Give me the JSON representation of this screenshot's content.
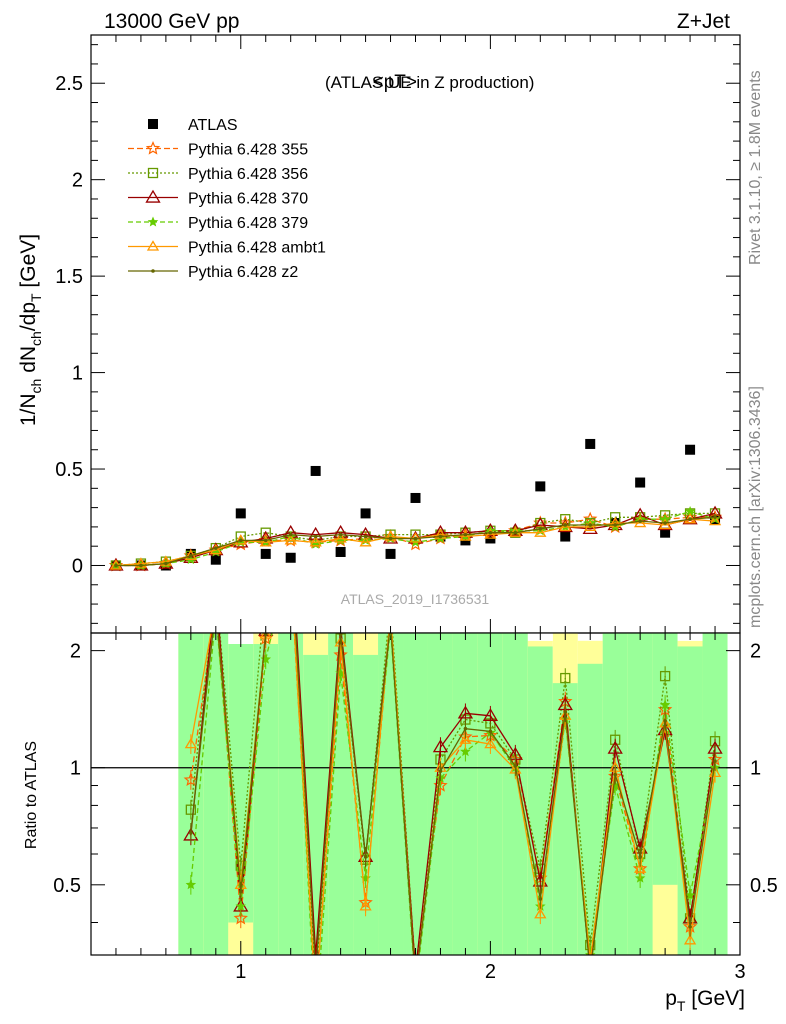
{
  "header": {
    "left": "13000 GeV pp",
    "right": "Z+Jet"
  },
  "side_labels": {
    "rivet": "Rivet 3.1.10, ≥ 1.8M events",
    "mcplots": "mcplots.cern.ch [arXiv:1306.3436]"
  },
  "colors": {
    "atlas": "#000000",
    "p355": "#ff6600",
    "p356": "#669900",
    "p370": "#990000",
    "p379": "#66cc00",
    "ambt1": "#ff9900",
    "z2": "#666600",
    "band_inner": "#99ff99",
    "band_outer": "#ffff99"
  },
  "chart_data": [
    {
      "type": "scatter",
      "title": "<pT>",
      "subtitle": "(ATLAS UE in Z production)",
      "watermark": "ATLAS_2019_I1736531",
      "xlabel": "p",
      "xlabel_sub": "T",
      "xlabel_unit": "[GeV]",
      "ylabel": "1/N",
      "xlim": [
        0.4,
        3.0
      ],
      "ylim": [
        -0.35,
        2.75
      ],
      "yticks": [
        "0",
        "0.5",
        "1",
        "1.5",
        "2",
        "2.5"
      ],
      "xticks": [
        "1",
        "2",
        "3"
      ],
      "x": [
        0.5,
        0.6,
        0.7,
        0.8,
        0.9,
        1.0,
        1.1,
        1.2,
        1.3,
        1.4,
        1.5,
        1.6,
        1.7,
        1.8,
        1.9,
        2.0,
        2.1,
        2.2,
        2.3,
        2.4,
        2.5,
        2.6,
        2.7,
        2.8,
        2.9
      ],
      "series": [
        {
          "name": "ATLAS",
          "key": "atlas",
          "values": [
            0.0,
            0.0,
            0.0,
            0.06,
            0.03,
            0.27,
            0.06,
            0.04,
            0.49,
            0.07,
            0.27,
            0.06,
            0.35,
            0.15,
            0.13,
            0.14,
            0.17,
            0.41,
            0.15,
            0.63,
            0.22,
            0.43,
            0.17,
            0.6,
            0.24
          ]
        },
        {
          "name": "Pythia 6.428 355",
          "key": "p355",
          "values": [
            0.0,
            0.0,
            0.01,
            0.05,
            0.08,
            0.11,
            0.13,
            0.13,
            0.12,
            0.13,
            0.14,
            0.15,
            0.11,
            0.14,
            0.16,
            0.17,
            0.18,
            0.22,
            0.22,
            0.24,
            0.2,
            0.24,
            0.24,
            0.25,
            0.25
          ]
        },
        {
          "name": "Pythia 6.428 356",
          "key": "p356",
          "values": [
            0.0,
            0.01,
            0.02,
            0.05,
            0.09,
            0.15,
            0.17,
            0.15,
            0.13,
            0.15,
            0.15,
            0.16,
            0.16,
            0.16,
            0.17,
            0.18,
            0.17,
            0.22,
            0.24,
            0.22,
            0.25,
            0.25,
            0.26,
            0.27,
            0.27
          ]
        },
        {
          "name": "Pythia 6.428 370",
          "key": "p370",
          "values": [
            0.0,
            0.0,
            0.01,
            0.04,
            0.08,
            0.12,
            0.14,
            0.17,
            0.16,
            0.17,
            0.16,
            0.14,
            0.14,
            0.17,
            0.17,
            0.18,
            0.18,
            0.21,
            0.2,
            0.19,
            0.21,
            0.26,
            0.21,
            0.24,
            0.27
          ]
        },
        {
          "name": "Pythia 6.428 379",
          "key": "p379",
          "values": [
            0.0,
            0.0,
            0.01,
            0.03,
            0.07,
            0.12,
            0.12,
            0.15,
            0.11,
            0.13,
            0.13,
            0.14,
            0.12,
            0.14,
            0.15,
            0.18,
            0.18,
            0.18,
            0.2,
            0.22,
            0.2,
            0.24,
            0.24,
            0.28,
            0.24
          ]
        },
        {
          "name": "Pythia 6.428 ambt1",
          "key": "ambt1",
          "values": [
            0.0,
            0.01,
            0.02,
            0.05,
            0.08,
            0.13,
            0.12,
            0.13,
            0.12,
            0.14,
            0.12,
            0.15,
            0.14,
            0.16,
            0.15,
            0.16,
            0.17,
            0.17,
            0.2,
            0.2,
            0.22,
            0.22,
            0.21,
            0.24,
            0.23
          ]
        },
        {
          "name": "Pythia 6.428 z2",
          "key": "z2",
          "values": [
            0.0,
            0.0,
            0.01,
            0.05,
            0.09,
            0.13,
            0.13,
            0.16,
            0.15,
            0.16,
            0.15,
            0.14,
            0.14,
            0.15,
            0.16,
            0.17,
            0.17,
            0.19,
            0.21,
            0.21,
            0.21,
            0.23,
            0.22,
            0.24,
            0.25
          ]
        }
      ]
    },
    {
      "type": "line",
      "ylabel": "Ratio to ATLAS",
      "xlim": [
        0.4,
        3.0
      ],
      "ylim": [
        0.33,
        2.22
      ],
      "yticks": [
        "0.5",
        "1",
        "2"
      ],
      "ytick_values": [
        0.5,
        1,
        2
      ],
      "reference": 1,
      "band": {
        "x_edges": [
          0.75,
          0.85,
          0.95,
          1.05,
          1.15,
          1.25,
          1.35,
          1.45,
          1.55,
          1.65,
          1.75,
          1.85,
          1.95,
          2.05,
          2.15,
          2.25,
          2.35,
          2.45,
          2.55,
          2.65,
          2.75,
          2.85,
          2.95
        ],
        "inner_hi": [
          2.22,
          2.22,
          2.22,
          2.08,
          2.22,
          1.95,
          2.22,
          1.95,
          2.22,
          2.22,
          2.22,
          2.22,
          2.22,
          2.22,
          2.05,
          1.65,
          1.85,
          2.22,
          2.22,
          2.22,
          2.05,
          2.22
        ],
        "outer_hi": [
          2.22,
          2.22,
          2.22,
          2.22,
          2.22,
          2.22,
          2.22,
          2.22,
          2.22,
          2.22,
          2.22,
          2.22,
          2.22,
          2.22,
          2.12,
          2.22,
          2.12,
          2.22,
          2.22,
          2.22,
          2.12,
          2.22
        ],
        "inner_lo": [
          0.33,
          0.33,
          0.33,
          0.33,
          0.33,
          0.33,
          0.33,
          0.33,
          0.33,
          0.33,
          0.33,
          0.33,
          0.33,
          0.33,
          0.33,
          0.33,
          0.33,
          0.33,
          0.33,
          0.33,
          0.33,
          0.33
        ],
        "outer_lo_hole": [
          null,
          null,
          [
            0.33,
            0.4
          ],
          null,
          null,
          null,
          null,
          null,
          null,
          null,
          null,
          null,
          null,
          null,
          null,
          null,
          null,
          null,
          null,
          [
            0.33,
            0.5
          ],
          null,
          null
        ]
      },
      "x": [
        0.8,
        0.9,
        1.0,
        1.1,
        1.2,
        1.3,
        1.4,
        1.5,
        1.6,
        1.7,
        1.8,
        1.9,
        2.0,
        2.1,
        2.2,
        2.3,
        2.4,
        2.5,
        2.6,
        2.7,
        2.8,
        2.9
      ],
      "series": [
        {
          "key": "p355",
          "values": [
            0.93,
            2.6,
            0.41,
            2.15,
            3.2,
            0.25,
            1.95,
            0.45,
            2.4,
            0.3,
            0.9,
            1.2,
            1.21,
            1.05,
            0.52,
            1.48,
            0.3,
            0.95,
            0.55,
            1.41,
            0.39,
            1.05
          ]
        },
        {
          "key": "p356",
          "values": [
            0.78,
            2.9,
            0.56,
            2.9,
            3.5,
            0.28,
            2.15,
            0.58,
            2.65,
            0.3,
            1.05,
            1.33,
            1.3,
            1.05,
            0.55,
            1.7,
            0.35,
            1.18,
            0.6,
            1.72,
            0.41,
            1.17
          ]
        },
        {
          "key": "p370",
          "values": [
            0.67,
            2.9,
            0.44,
            2.25,
            4.0,
            0.33,
            2.3,
            0.59,
            2.4,
            0.3,
            1.13,
            1.38,
            1.36,
            1.08,
            0.51,
            1.45,
            0.3,
            1.12,
            0.62,
            1.25,
            0.41,
            1.12
          ]
        },
        {
          "key": "p379",
          "values": [
            0.5,
            2.5,
            0.44,
            1.9,
            3.5,
            0.22,
            1.75,
            0.52,
            2.3,
            0.27,
            0.94,
            1.1,
            1.23,
            1.0,
            0.44,
            1.33,
            0.33,
            0.9,
            0.52,
            1.45,
            0.47,
            1.0
          ]
        },
        {
          "key": "ambt1",
          "values": [
            1.15,
            2.6,
            0.5,
            2.2,
            3.3,
            0.25,
            2.1,
            0.44,
            2.5,
            0.28,
            1.0,
            1.18,
            1.15,
            0.99,
            0.42,
            1.36,
            0.32,
            1.0,
            0.55,
            1.3,
            0.36,
            0.97
          ]
        },
        {
          "key": "z2",
          "values": [
            0.68,
            2.6,
            0.48,
            2.2,
            3.7,
            0.3,
            2.2,
            0.59,
            2.35,
            0.28,
            0.98,
            1.26,
            1.24,
            1.01,
            0.46,
            1.39,
            0.3,
            0.96,
            0.59,
            1.32,
            0.39,
            1.04
          ]
        }
      ]
    }
  ]
}
